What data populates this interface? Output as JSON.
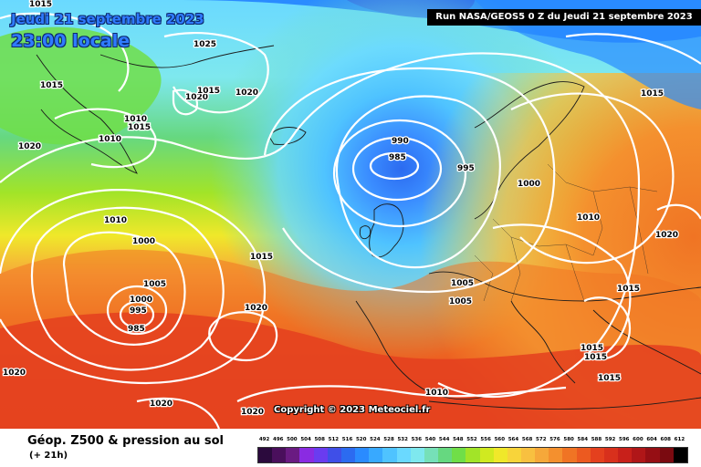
{
  "header": {
    "date": "Jeudi 21 septembre 2023",
    "time": "23:00 locale",
    "run": "Run NASA/GEOS5 0 Z du Jeudi 21 septembre 2023"
  },
  "copyright": "Copyright © 2023 Meteociel.fr",
  "footer": {
    "title": "Géop. Z500 & pression au sol",
    "subtitle": "(+ 21h)"
  },
  "scale": {
    "labels": [
      "492",
      "496",
      "500",
      "504",
      "508",
      "512",
      "516",
      "520",
      "524",
      "528",
      "532",
      "536",
      "540",
      "544",
      "548",
      "552",
      "556",
      "560",
      "564",
      "568",
      "572",
      "576",
      "580",
      "584",
      "588",
      "592",
      "596",
      "600",
      "604",
      "608",
      "612"
    ],
    "colors": [
      "#2b0a3d",
      "#4a0f5c",
      "#6a1b82",
      "#8a2be2",
      "#6a3cf0",
      "#3f4fe8",
      "#2c6bf0",
      "#2a8bff",
      "#38a9ff",
      "#4fc3ff",
      "#6ad9ff",
      "#7ee8ee",
      "#76e0b8",
      "#66d880",
      "#70de48",
      "#a2e428",
      "#d0ea20",
      "#f0e82a",
      "#f8d43a",
      "#f8c040",
      "#f6a83a",
      "#f4902e",
      "#f07424",
      "#ec5a20",
      "#e4401e",
      "#d8301c",
      "#c8201a",
      "#b01618",
      "#960e14",
      "#7a0a10",
      "#000000"
    ]
  },
  "isobars": [
    "1015",
    "1025",
    "1015",
    "1020",
    "1015",
    "1020",
    "1010",
    "1015",
    "1010",
    "1020",
    "990",
    "985",
    "995",
    "1000",
    "1015",
    "1010",
    "1020",
    "1010",
    "1000",
    "1015",
    "1005",
    "1000",
    "995",
    "985",
    "1020",
    "1005",
    "1005",
    "1015",
    "1015",
    "1015",
    "1015",
    "1020",
    "1010",
    "1020",
    "1020"
  ],
  "colors": {
    "title_blue": "#2f7bff",
    "isobar": "#ffffff"
  }
}
